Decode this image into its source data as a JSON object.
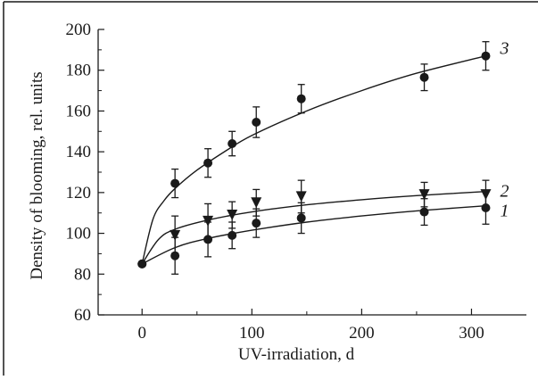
{
  "chart_data": {
    "type": "scatter",
    "xlabel": "UV-irradiation, d",
    "ylabel": "Density of blooming, rel. units",
    "xlim": [
      -40,
      350
    ],
    "ylim": [
      60,
      200
    ],
    "xticks": [
      0,
      100,
      200,
      300
    ],
    "yticks": [
      60,
      80,
      100,
      120,
      140,
      160,
      180,
      200
    ],
    "grid": false,
    "legend": "inline labels at right end of curves",
    "colors": {
      "ink": "#1a1a1a",
      "background": "#ffffff"
    },
    "series": [
      {
        "name": "1",
        "marker": "circle",
        "x": [
          0,
          30,
          60,
          82,
          104,
          145,
          257,
          313
        ],
        "y": [
          85,
          89,
          97,
          99,
          105,
          107.5,
          110.5,
          112.5
        ],
        "err": [
          0,
          9,
          8.5,
          6.5,
          7,
          7.5,
          6.5,
          8
        ],
        "fit": [
          [
            0,
            85
          ],
          [
            30,
            93
          ],
          [
            60,
            97.5
          ],
          [
            100,
            101.5
          ],
          [
            150,
            105.5
          ],
          [
            200,
            108.5
          ],
          [
            250,
            111
          ],
          [
            313,
            113.5
          ]
        ]
      },
      {
        "name": "2",
        "marker": "triangle-down",
        "x": [
          30,
          60,
          82,
          104,
          145,
          257,
          313
        ],
        "y": [
          99,
          106,
          109,
          115,
          118,
          119,
          119
        ],
        "err": [
          9.5,
          8.5,
          6.5,
          6.5,
          8,
          6,
          7
        ],
        "fit": [
          [
            0,
            85
          ],
          [
            15,
            97
          ],
          [
            30,
            102
          ],
          [
            60,
            106.5
          ],
          [
            100,
            110.5
          ],
          [
            150,
            114
          ],
          [
            200,
            116.5
          ],
          [
            250,
            118.5
          ],
          [
            313,
            120.5
          ]
        ]
      },
      {
        "name": "3",
        "marker": "circle",
        "x": [
          0,
          30,
          60,
          82,
          104,
          145,
          257,
          313
        ],
        "y": [
          85,
          124.5,
          134.5,
          144,
          154.5,
          166,
          176.5,
          187
        ],
        "err": [
          0,
          7,
          7,
          6,
          7.5,
          7,
          6.5,
          7
        ],
        "fit": [
          [
            0,
            85
          ],
          [
            10,
            107
          ],
          [
            20,
            116
          ],
          [
            30,
            122
          ],
          [
            50,
            131
          ],
          [
            75,
            140
          ],
          [
            100,
            148
          ],
          [
            150,
            160
          ],
          [
            200,
            170
          ],
          [
            250,
            178.5
          ],
          [
            313,
            187
          ]
        ]
      }
    ]
  }
}
